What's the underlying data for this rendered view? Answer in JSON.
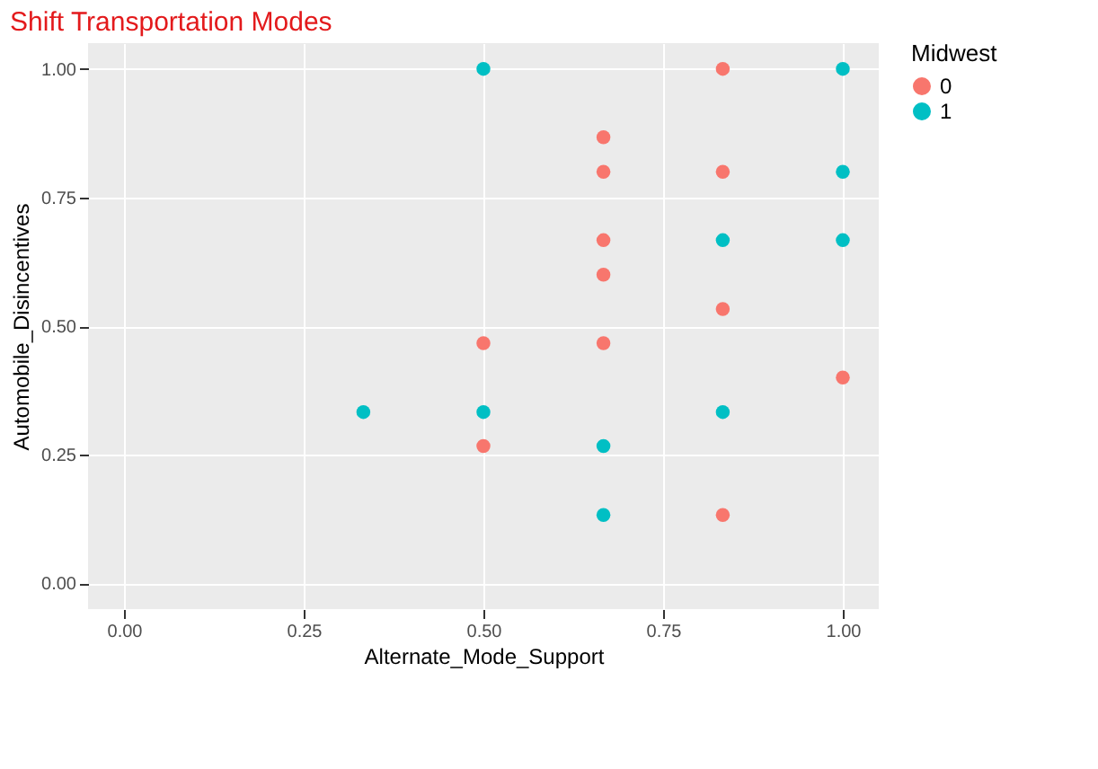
{
  "chart_data": {
    "type": "scatter",
    "title": "Shift Transportation Modes",
    "xlabel": "Alternate_Mode_Support",
    "ylabel": "Automobile_Disincentives",
    "legend_title": "Midwest",
    "series": [
      {
        "name": "0",
        "color": "#f8766d",
        "x": [
          0.833,
          0.667,
          0.667,
          0.833,
          0.667,
          0.667,
          0.833,
          0.5,
          0.667,
          1.0,
          0.5,
          0.833
        ],
        "values": [
          1.0,
          0.867,
          0.8,
          0.8,
          0.667,
          0.6,
          0.533,
          0.467,
          0.467,
          0.4,
          0.267,
          0.133
        ]
      },
      {
        "name": "1",
        "color": "#00bfc4",
        "x": [
          0.5,
          1.0,
          1.0,
          0.833,
          1.0,
          0.333,
          0.5,
          0.833,
          0.667,
          0.667
        ],
        "values": [
          1.0,
          1.0,
          0.8,
          0.667,
          0.667,
          0.333,
          0.333,
          0.333,
          0.267,
          0.133
        ]
      }
    ],
    "xlim": [
      -0.05,
      1.05
    ],
    "ylim": [
      -0.05,
      1.05
    ],
    "xticks": [
      {
        "value": 0,
        "label": "0.00"
      },
      {
        "value": 0.25,
        "label": "0.25"
      },
      {
        "value": 0.5,
        "label": "0.50"
      },
      {
        "value": 0.75,
        "label": "0.75"
      },
      {
        "value": 1,
        "label": "1.00"
      }
    ],
    "yticks": [
      {
        "value": 0,
        "label": "0.00"
      },
      {
        "value": 0.25,
        "label": "0.25"
      },
      {
        "value": 0.5,
        "label": "0.50"
      },
      {
        "value": 0.75,
        "label": "0.75"
      },
      {
        "value": 1,
        "label": "1.00"
      }
    ],
    "grid": true,
    "legend": "right",
    "marker": "circle"
  }
}
